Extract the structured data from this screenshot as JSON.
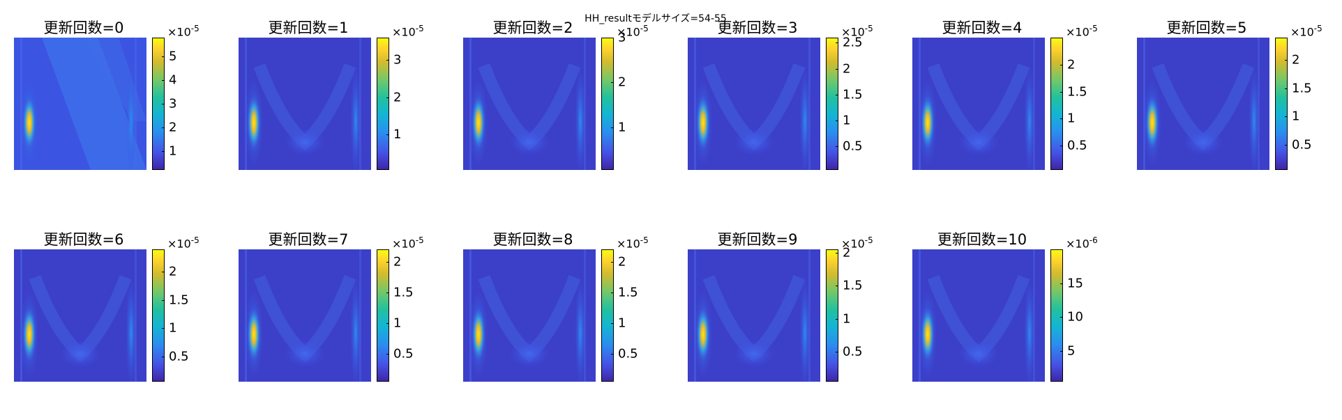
{
  "figure_title": "HH_resultモデルサイズ=54-55",
  "chart_data": [
    {
      "type": "heatmap",
      "title": "更新回数=0",
      "exponent": "-5",
      "colorbar_ticks": [
        {
          "value": 1,
          "label": "1"
        },
        {
          "value": 2,
          "label": "2"
        },
        {
          "value": 3,
          "label": "3"
        },
        {
          "value": 4,
          "label": "4"
        },
        {
          "value": 5,
          "label": "5"
        }
      ],
      "clim": [
        0.2,
        5.8
      ],
      "colormap": "parula"
    },
    {
      "type": "heatmap",
      "title": "更新回数=1",
      "exponent": "-5",
      "colorbar_ticks": [
        {
          "value": 1,
          "label": "1"
        },
        {
          "value": 2,
          "label": "2"
        },
        {
          "value": 3,
          "label": "3"
        }
      ],
      "clim": [
        0.05,
        3.6
      ],
      "colormap": "parula"
    },
    {
      "type": "heatmap",
      "title": "更新回数=2",
      "exponent": "-5",
      "colorbar_ticks": [
        {
          "value": 1,
          "label": "1"
        },
        {
          "value": 2,
          "label": "2"
        },
        {
          "value": 3,
          "label": "3"
        }
      ],
      "clim": [
        0.05,
        3.0
      ],
      "colormap": "parula"
    },
    {
      "type": "heatmap",
      "title": "更新回数=3",
      "exponent": "-5",
      "colorbar_ticks": [
        {
          "value": 0.5,
          "label": "0.5"
        },
        {
          "value": 1,
          "label": "1"
        },
        {
          "value": 1.5,
          "label": "1.5"
        },
        {
          "value": 2,
          "label": "2"
        },
        {
          "value": 2.5,
          "label": "2.5"
        }
      ],
      "clim": [
        0.05,
        2.6
      ],
      "colormap": "parula"
    },
    {
      "type": "heatmap",
      "title": "更新回数=4",
      "exponent": "-5",
      "colorbar_ticks": [
        {
          "value": 0.5,
          "label": "0.5"
        },
        {
          "value": 1,
          "label": "1"
        },
        {
          "value": 1.5,
          "label": "1.5"
        },
        {
          "value": 2,
          "label": "2"
        }
      ],
      "clim": [
        0.05,
        2.5
      ],
      "colormap": "parula"
    },
    {
      "type": "heatmap",
      "title": "更新回数=5",
      "exponent": "-5",
      "colorbar_ticks": [
        {
          "value": 0.5,
          "label": "0.5"
        },
        {
          "value": 1,
          "label": "1"
        },
        {
          "value": 1.5,
          "label": "1.5"
        },
        {
          "value": 2,
          "label": "2"
        }
      ],
      "clim": [
        0.05,
        2.4
      ],
      "colormap": "parula"
    },
    {
      "type": "heatmap",
      "title": "更新回数=6",
      "exponent": "-5",
      "colorbar_ticks": [
        {
          "value": 0.5,
          "label": "0.5"
        },
        {
          "value": 1,
          "label": "1"
        },
        {
          "value": 1.5,
          "label": "1.5"
        },
        {
          "value": 2,
          "label": "2"
        }
      ],
      "clim": [
        0.05,
        2.4
      ],
      "colormap": "parula"
    },
    {
      "type": "heatmap",
      "title": "更新回数=7",
      "exponent": "-5",
      "colorbar_ticks": [
        {
          "value": 0.5,
          "label": "0.5"
        },
        {
          "value": 1,
          "label": "1"
        },
        {
          "value": 1.5,
          "label": "1.5"
        },
        {
          "value": 2,
          "label": "2"
        }
      ],
      "clim": [
        0.05,
        2.2
      ],
      "colormap": "parula"
    },
    {
      "type": "heatmap",
      "title": "更新回数=8",
      "exponent": "-5",
      "colorbar_ticks": [
        {
          "value": 0.5,
          "label": "0.5"
        },
        {
          "value": 1,
          "label": "1"
        },
        {
          "value": 1.5,
          "label": "1.5"
        },
        {
          "value": 2,
          "label": "2"
        }
      ],
      "clim": [
        0.05,
        2.2
      ],
      "colormap": "parula"
    },
    {
      "type": "heatmap",
      "title": "更新回数=9",
      "exponent": "-5",
      "colorbar_ticks": [
        {
          "value": 0.5,
          "label": "0.5"
        },
        {
          "value": 1,
          "label": "1"
        },
        {
          "value": 1.5,
          "label": "1.5"
        },
        {
          "value": 2,
          "label": "2"
        }
      ],
      "clim": [
        0.05,
        2.05
      ],
      "colormap": "parula"
    },
    {
      "type": "heatmap",
      "title": "更新回数=10",
      "exponent": "-6",
      "colorbar_ticks": [
        {
          "value": 5,
          "label": "5"
        },
        {
          "value": 10,
          "label": "10"
        },
        {
          "value": 15,
          "label": "15"
        }
      ],
      "clim": [
        0.5,
        20
      ],
      "colormap": "parula"
    }
  ]
}
